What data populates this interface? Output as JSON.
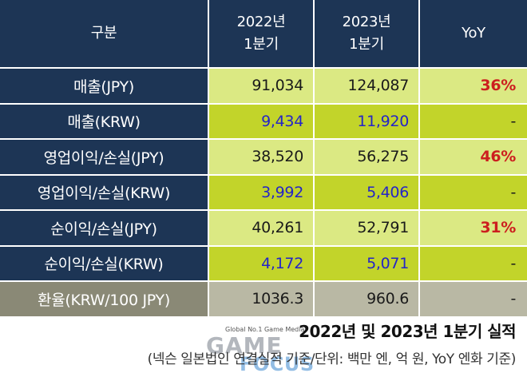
{
  "table": {
    "header": {
      "col1": "구분",
      "col2_line1": "2022년",
      "col2_line2": "1분기",
      "col3_line1": "2023년",
      "col3_line2": "1분기",
      "col4": "YoY"
    },
    "rows": [
      {
        "label": "매출(JPY)",
        "y2022": "91,034",
        "y2023": "124,087",
        "yoy": "36%"
      },
      {
        "label": "매출(KRW)",
        "y2022": "9,434",
        "y2023": "11,920",
        "yoy": "-"
      },
      {
        "label": "영업이익/손실(JPY)",
        "y2022": "38,520",
        "y2023": "56,275",
        "yoy": "46%"
      },
      {
        "label": "영업이익/손실(KRW)",
        "y2022": "3,992",
        "y2023": "5,406",
        "yoy": "-"
      },
      {
        "label": "순이익/손실(JPY)",
        "y2022": "40,261",
        "y2023": "52,791",
        "yoy": "31%"
      },
      {
        "label": "순이익/손실(KRW)",
        "y2022": "4,172",
        "y2023": "5,071",
        "yoy": "-"
      },
      {
        "label": "환율(KRW/100 JPY)",
        "y2022": "1036.3",
        "y2023": "960.6",
        "yoy": "-"
      }
    ],
    "colors": {
      "header_bg": "#1d3555",
      "row_light": "#dbe983",
      "row_dark": "#c2d42a",
      "fx_label_bg": "#8a8976",
      "fx_value_bg": "#b9b8a4",
      "krw_text": "#2424c8",
      "yoy_text": "#cc1f1f"
    }
  },
  "caption": {
    "title": "2022년 및 2023년 1분기 실적",
    "subtitle": "(넥슨 일본법인 연결실적 기준/단위: 백만 엔, 억 원, YoY 엔화 기준)"
  },
  "watermark": {
    "tagline": "Global No.1 Game Media",
    "word1": "GAME",
    "word2": "FOCUS"
  }
}
